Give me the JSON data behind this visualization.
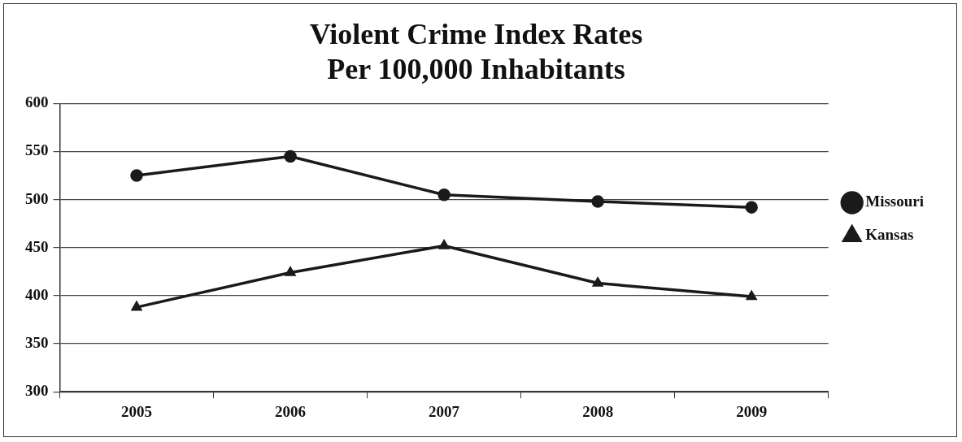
{
  "chart_data": {
    "type": "line",
    "title": "Violent Crime Index Rates\nPer 100,000 Inhabitants",
    "categories": [
      "2005",
      "2006",
      "2007",
      "2008",
      "2009"
    ],
    "series": [
      {
        "name": "Missouri",
        "color": "#1a1a1a",
        "marker": "circle",
        "values": [
          525,
          545,
          505,
          498,
          492
        ]
      },
      {
        "name": "Kansas",
        "color": "#1a1a1a",
        "marker": "triangle",
        "values": [
          388,
          424,
          452,
          413,
          399
        ]
      }
    ],
    "ylim": [
      300,
      600
    ],
    "yticks": [
      300,
      350,
      400,
      450,
      500,
      550,
      600
    ],
    "grid": "y",
    "legend": "right",
    "line_style": "solid"
  }
}
